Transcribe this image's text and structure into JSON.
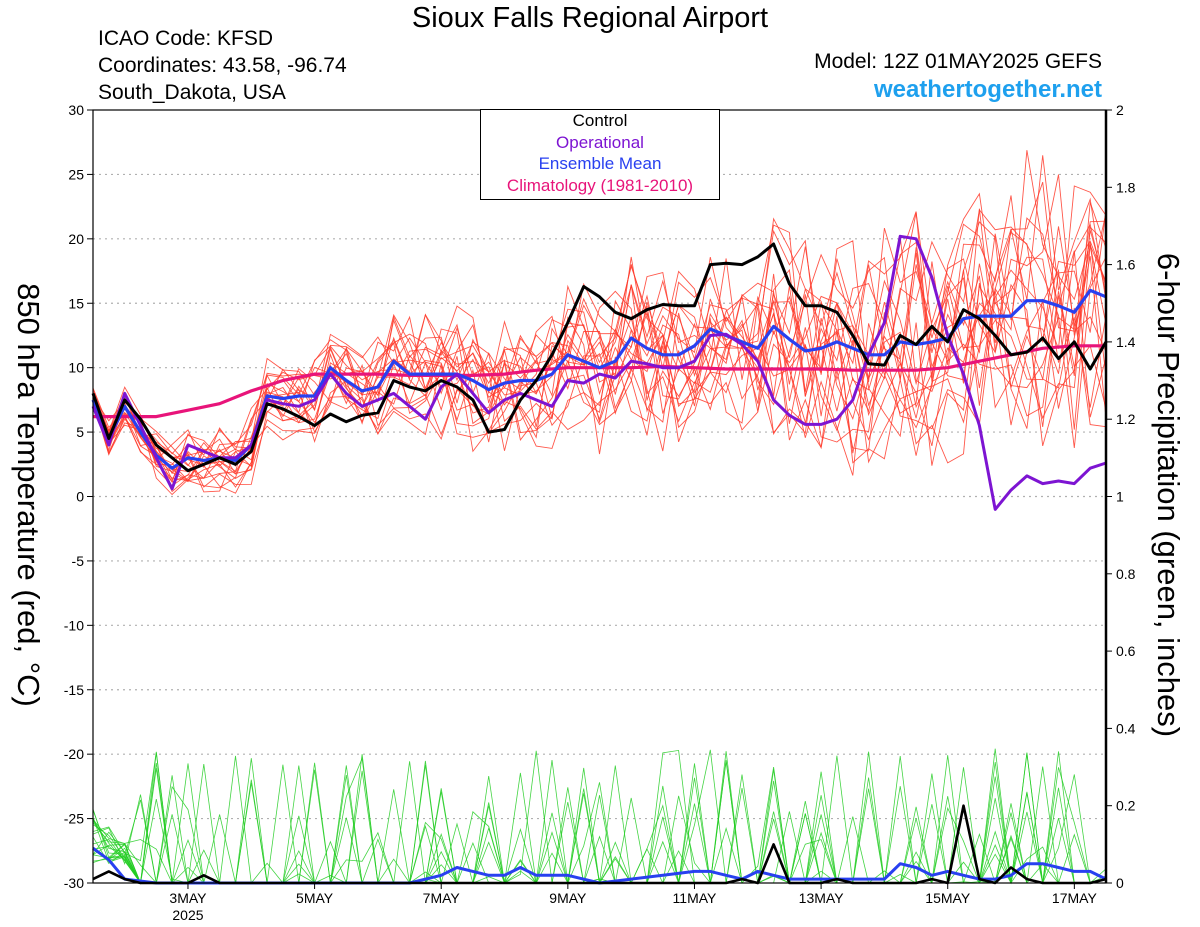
{
  "header": {
    "title": "Sioux Falls Regional Airport",
    "icao": "ICAO Code: KFSD",
    "coords": "Coordinates: 43.58, -96.74",
    "region": "South_Dakota, USA",
    "model": "Model: 12Z 01MAY2025 GEFS",
    "site": "weathertogether.net"
  },
  "legend": {
    "control": "Control",
    "operational": "Operational",
    "ensemble_mean": "Ensemble Mean",
    "climatology": "Climatology (1981-2010)"
  },
  "colors": {
    "control": "#000000",
    "operational": "#7d14d2",
    "ensemble_mean": "#2840f0",
    "climatology": "#e8147a",
    "members_temp": "#ff3a2a",
    "members_precip": "#22cc22"
  },
  "chart_data": {
    "type": "line",
    "ylabel": "850 hPa Temperature (red, °C)",
    "y2label": "6-hour Precipitation (green, inches)",
    "xlim": [
      1.5,
      17.5
    ],
    "ylim": [
      -30,
      30
    ],
    "y2lim": [
      0,
      2
    ],
    "grid": true,
    "x_ticks": [
      {
        "x": 3,
        "label": "3MAY",
        "sub": "2025"
      },
      {
        "x": 5,
        "label": "5MAY",
        "sub": ""
      },
      {
        "x": 7,
        "label": "7MAY",
        "sub": ""
      },
      {
        "x": 9,
        "label": "9MAY",
        "sub": ""
      },
      {
        "x": 11,
        "label": "11MAY",
        "sub": ""
      },
      {
        "x": 13,
        "label": "13MAY",
        "sub": ""
      },
      {
        "x": 15,
        "label": "15MAY",
        "sub": ""
      },
      {
        "x": 17,
        "label": "17MAY",
        "sub": ""
      }
    ],
    "y_ticks": [
      "-30",
      "-25",
      "-20",
      "-15",
      "-10",
      "-5",
      "0",
      "5",
      "10",
      "15",
      "20",
      "25",
      "30"
    ],
    "y2_ticks": [
      "0",
      "0.2",
      "0.4",
      "0.6",
      "0.8",
      "1",
      "1.2",
      "1.4",
      "1.6",
      "1.8",
      "2"
    ],
    "temperature": {
      "control": [
        [
          1.5,
          8
        ],
        [
          1.75,
          4.5
        ],
        [
          2,
          7.5
        ],
        [
          2.25,
          6
        ],
        [
          2.5,
          4
        ],
        [
          2.75,
          3
        ],
        [
          3,
          2
        ],
        [
          3.25,
          2.5
        ],
        [
          3.5,
          3
        ],
        [
          3.75,
          2.5
        ],
        [
          4,
          3.5
        ],
        [
          4.25,
          7.2
        ],
        [
          4.5,
          6.8
        ],
        [
          4.75,
          6.2
        ],
        [
          5,
          5.5
        ],
        [
          5.25,
          6.4
        ],
        [
          5.5,
          5.8
        ],
        [
          5.75,
          6.3
        ],
        [
          6,
          6.5
        ],
        [
          6.25,
          9
        ],
        [
          6.5,
          8.5
        ],
        [
          6.75,
          8.2
        ],
        [
          7,
          9
        ],
        [
          7.25,
          8.5
        ],
        [
          7.5,
          7.5
        ],
        [
          7.75,
          5
        ],
        [
          8,
          5.2
        ],
        [
          8.25,
          7.5
        ],
        [
          8.5,
          9
        ],
        [
          8.75,
          11
        ],
        [
          9,
          13.5
        ],
        [
          9.25,
          16.3
        ],
        [
          9.5,
          15.5
        ],
        [
          9.75,
          14.3
        ],
        [
          10,
          13.8
        ],
        [
          10.25,
          14.5
        ],
        [
          10.5,
          14.9
        ],
        [
          10.75,
          14.8
        ],
        [
          11,
          14.8
        ],
        [
          11.25,
          18
        ],
        [
          11.5,
          18.1
        ],
        [
          11.75,
          18
        ],
        [
          12,
          18.6
        ],
        [
          12.25,
          19.6
        ],
        [
          12.5,
          16.5
        ],
        [
          12.75,
          14.8
        ],
        [
          13,
          14.8
        ],
        [
          13.25,
          14.3
        ],
        [
          13.5,
          12.5
        ],
        [
          13.75,
          10.3
        ],
        [
          14,
          10.2
        ],
        [
          14.25,
          12.5
        ],
        [
          14.5,
          11.8
        ],
        [
          14.75,
          13.2
        ],
        [
          15,
          12
        ],
        [
          15.25,
          14.5
        ],
        [
          15.5,
          13.8
        ],
        [
          15.75,
          12.5
        ],
        [
          16,
          11
        ],
        [
          16.25,
          11.2
        ],
        [
          16.5,
          12.3
        ],
        [
          16.75,
          10.7
        ],
        [
          17,
          12
        ],
        [
          17.25,
          9.9
        ],
        [
          17.5,
          12
        ],
        [
          17.75,
          12.1
        ],
        [
          18,
          12.8
        ]
      ],
      "operational": [
        [
          1.5,
          7
        ],
        [
          1.75,
          4
        ],
        [
          2,
          8
        ],
        [
          2.25,
          5.5
        ],
        [
          2.5,
          3
        ],
        [
          2.75,
          0.6
        ],
        [
          3,
          4
        ],
        [
          3.25,
          3.5
        ],
        [
          3.5,
          3
        ],
        [
          3.75,
          3
        ],
        [
          4,
          4
        ],
        [
          4.25,
          7.5
        ],
        [
          4.5,
          7.2
        ],
        [
          4.75,
          7
        ],
        [
          5,
          7.5
        ],
        [
          5.25,
          9.5
        ],
        [
          5.5,
          8
        ],
        [
          5.75,
          7
        ],
        [
          6,
          7.5
        ],
        [
          6.25,
          8
        ],
        [
          6.5,
          7
        ],
        [
          6.75,
          6
        ],
        [
          7,
          8.5
        ],
        [
          7.25,
          9.5
        ],
        [
          7.5,
          8
        ],
        [
          7.75,
          6.5
        ],
        [
          8,
          7.5
        ],
        [
          8.25,
          8
        ],
        [
          8.5,
          7.5
        ],
        [
          8.75,
          7
        ],
        [
          9,
          9
        ],
        [
          9.25,
          8.8
        ],
        [
          9.5,
          9.5
        ],
        [
          9.75,
          9.2
        ],
        [
          10,
          10.5
        ],
        [
          10.25,
          10.3
        ],
        [
          10.5,
          10
        ],
        [
          10.75,
          10
        ],
        [
          11,
          10.5
        ],
        [
          11.25,
          12.5
        ],
        [
          11.5,
          12.6
        ],
        [
          11.75,
          11.8
        ],
        [
          12,
          10.5
        ],
        [
          12.25,
          7.5
        ],
        [
          12.5,
          6.3
        ],
        [
          12.75,
          5.6
        ],
        [
          13,
          5.6
        ],
        [
          13.25,
          6
        ],
        [
          13.5,
          7.5
        ],
        [
          13.75,
          11
        ],
        [
          14,
          13.5
        ],
        [
          14.25,
          20.2
        ],
        [
          14.5,
          20
        ],
        [
          14.75,
          17
        ],
        [
          15,
          12.5
        ],
        [
          15.25,
          9.5
        ],
        [
          15.5,
          5.5
        ],
        [
          15.75,
          -1
        ],
        [
          16,
          0.5
        ],
        [
          16.25,
          1.6
        ],
        [
          16.5,
          1
        ],
        [
          16.75,
          1.2
        ],
        [
          17,
          1
        ],
        [
          17.25,
          2.2
        ],
        [
          17.5,
          2.6
        ],
        [
          17.75,
          3
        ],
        [
          18,
          3.5
        ]
      ],
      "ensemble_mean": [
        [
          1.5,
          7.5
        ],
        [
          1.75,
          4.5
        ],
        [
          2,
          7
        ],
        [
          2.25,
          5
        ],
        [
          2.5,
          3.2
        ],
        [
          2.75,
          2.2
        ],
        [
          3,
          3
        ],
        [
          3.25,
          2.8
        ],
        [
          3.5,
          3
        ],
        [
          3.75,
          2.8
        ],
        [
          4,
          4
        ],
        [
          4.25,
          7.8
        ],
        [
          4.5,
          7.6
        ],
        [
          4.75,
          7.8
        ],
        [
          5,
          7.8
        ],
        [
          5.25,
          10
        ],
        [
          5.5,
          9
        ],
        [
          5.75,
          8.2
        ],
        [
          6,
          8.5
        ],
        [
          6.25,
          10.5
        ],
        [
          6.5,
          9.5
        ],
        [
          6.75,
          9.5
        ],
        [
          7,
          9.5
        ],
        [
          7.25,
          9.5
        ],
        [
          7.5,
          9
        ],
        [
          7.75,
          8.3
        ],
        [
          8,
          8.8
        ],
        [
          8.25,
          9
        ],
        [
          8.5,
          9
        ],
        [
          8.75,
          9.5
        ],
        [
          9,
          11
        ],
        [
          9.25,
          10.5
        ],
        [
          9.5,
          10
        ],
        [
          9.75,
          10.5
        ],
        [
          10,
          12.3
        ],
        [
          10.25,
          11.5
        ],
        [
          10.5,
          11
        ],
        [
          10.75,
          11
        ],
        [
          11,
          11.7
        ],
        [
          11.25,
          13
        ],
        [
          11.5,
          12.5
        ],
        [
          11.75,
          12
        ],
        [
          12,
          11.5
        ],
        [
          12.25,
          13.2
        ],
        [
          12.5,
          12.2
        ],
        [
          12.75,
          11.3
        ],
        [
          13,
          11.5
        ],
        [
          13.25,
          12
        ],
        [
          13.5,
          11.5
        ],
        [
          13.75,
          11
        ],
        [
          14,
          11
        ],
        [
          14.25,
          12
        ],
        [
          14.5,
          11.8
        ],
        [
          14.75,
          12
        ],
        [
          15,
          12.3
        ],
        [
          15.25,
          13.8
        ],
        [
          15.5,
          14
        ],
        [
          15.75,
          14
        ],
        [
          16,
          14
        ],
        [
          16.25,
          15.2
        ],
        [
          16.5,
          15.2
        ],
        [
          16.75,
          14.8
        ],
        [
          17,
          14.3
        ],
        [
          17.25,
          16
        ],
        [
          17.5,
          15.5
        ],
        [
          17.75,
          15.5
        ]
      ],
      "climatology": [
        [
          1.5,
          6.2
        ],
        [
          2,
          6.2
        ],
        [
          2.5,
          6.2
        ],
        [
          3,
          6.7
        ],
        [
          3.5,
          7.2
        ],
        [
          4,
          8.2
        ],
        [
          4.5,
          9
        ],
        [
          5,
          9.5
        ],
        [
          5.5,
          9.5
        ],
        [
          6,
          9.5
        ],
        [
          6.5,
          9.4
        ],
        [
          7,
          9.4
        ],
        [
          7.5,
          9.4
        ],
        [
          8,
          9.5
        ],
        [
          8.5,
          9.8
        ],
        [
          9,
          10
        ],
        [
          9.5,
          10
        ],
        [
          10,
          10
        ],
        [
          10.5,
          10.1
        ],
        [
          11,
          10
        ],
        [
          11.5,
          9.9
        ],
        [
          12,
          9.9
        ],
        [
          12.5,
          9.9
        ],
        [
          13,
          9.9
        ],
        [
          13.5,
          9.8
        ],
        [
          14,
          9.8
        ],
        [
          14.5,
          9.8
        ],
        [
          15,
          10
        ],
        [
          15.5,
          10.5
        ],
        [
          16,
          11
        ],
        [
          16.5,
          11.5
        ],
        [
          17,
          11.7
        ],
        [
          17.5,
          11.7
        ],
        [
          18,
          11.7
        ]
      ]
    },
    "precipitation": {
      "control": [
        [
          1.5,
          0.01
        ],
        [
          1.75,
          0.03
        ],
        [
          2,
          0.01
        ],
        [
          2.25,
          0
        ],
        [
          2.5,
          0
        ],
        [
          3,
          0
        ],
        [
          3.25,
          0.02
        ],
        [
          3.5,
          0
        ],
        [
          4,
          0
        ],
        [
          5,
          0
        ],
        [
          6,
          0
        ],
        [
          7,
          0
        ],
        [
          8,
          0
        ],
        [
          9,
          0
        ],
        [
          10,
          0
        ],
        [
          11,
          0
        ],
        [
          11.5,
          0
        ],
        [
          11.75,
          0.01
        ],
        [
          12,
          0
        ],
        [
          12.25,
          0.1
        ],
        [
          12.5,
          0
        ],
        [
          13,
          0
        ],
        [
          13.25,
          0.01
        ],
        [
          13.5,
          0
        ],
        [
          14,
          0
        ],
        [
          14.5,
          0
        ],
        [
          14.75,
          0.01
        ],
        [
          15,
          0
        ],
        [
          15.25,
          0.2
        ],
        [
          15.5,
          0.01
        ],
        [
          15.75,
          0
        ],
        [
          16,
          0.04
        ],
        [
          16.25,
          0.01
        ],
        [
          16.5,
          0
        ],
        [
          17,
          0
        ],
        [
          17.25,
          0
        ],
        [
          17.5,
          0.01
        ],
        [
          17.75,
          0.01
        ],
        [
          18,
          0
        ]
      ],
      "ensemble_mean": [
        [
          1.5,
          0.09
        ],
        [
          1.75,
          0.06
        ],
        [
          2,
          0.01
        ],
        [
          2.5,
          0
        ],
        [
          3,
          0
        ],
        [
          4,
          0
        ],
        [
          5,
          0
        ],
        [
          6,
          0
        ],
        [
          6.5,
          0
        ],
        [
          7,
          0.02
        ],
        [
          7.25,
          0.04
        ],
        [
          7.5,
          0.03
        ],
        [
          7.75,
          0.02
        ],
        [
          8,
          0.02
        ],
        [
          8.25,
          0.04
        ],
        [
          8.5,
          0.02
        ],
        [
          9,
          0.02
        ],
        [
          9.5,
          0
        ],
        [
          10,
          0.01
        ],
        [
          10.5,
          0.02
        ],
        [
          11,
          0.03
        ],
        [
          11.25,
          0.03
        ],
        [
          11.5,
          0.02
        ],
        [
          11.75,
          0.01
        ],
        [
          12,
          0.03
        ],
        [
          12.25,
          0.02
        ],
        [
          12.5,
          0.01
        ],
        [
          13,
          0.01
        ],
        [
          13.5,
          0.01
        ],
        [
          14,
          0.01
        ],
        [
          14.25,
          0.05
        ],
        [
          14.5,
          0.04
        ],
        [
          14.75,
          0.02
        ],
        [
          15,
          0.03
        ],
        [
          15.25,
          0.02
        ],
        [
          15.5,
          0.01
        ],
        [
          15.75,
          0.01
        ],
        [
          16,
          0.02
        ],
        [
          16.25,
          0.05
        ],
        [
          16.5,
          0.05
        ],
        [
          16.75,
          0.04
        ],
        [
          17,
          0.03
        ],
        [
          17.25,
          0.03
        ],
        [
          17.5,
          0.01
        ],
        [
          17.75,
          0
        ]
      ]
    }
  }
}
